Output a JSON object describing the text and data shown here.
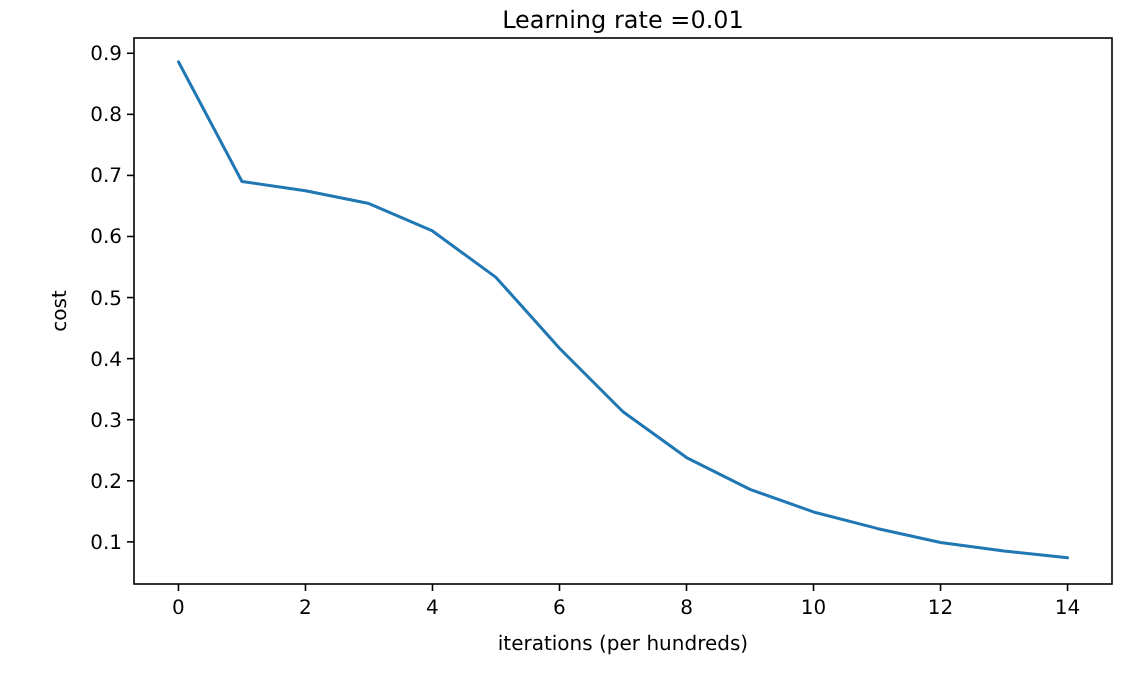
{
  "chart_data": {
    "type": "line",
    "title": "Learning rate =0.01",
    "xlabel": "iterations (per hundreds)",
    "ylabel": "cost",
    "x": [
      0,
      1,
      2,
      3,
      4,
      5,
      6,
      7,
      8,
      9,
      10,
      11,
      12,
      13,
      14
    ],
    "series": [
      {
        "color": "#1f77b4",
        "values": [
          0.886,
          0.69,
          0.675,
          0.654,
          0.609,
          0.533,
          0.417,
          0.313,
          0.238,
          0.186,
          0.149,
          0.122,
          0.099,
          0.085,
          0.074
        ]
      }
    ],
    "xlim": [
      -0.7,
      14.7
    ],
    "xticks": [
      0,
      2,
      4,
      6,
      8,
      10,
      12,
      14
    ],
    "ylim": [
      0.031,
      0.925
    ],
    "yticks": [
      0.1,
      0.2,
      0.3,
      0.4,
      0.5,
      0.6,
      0.7,
      0.8,
      0.9
    ],
    "marker": "none",
    "line_style": "solid"
  }
}
